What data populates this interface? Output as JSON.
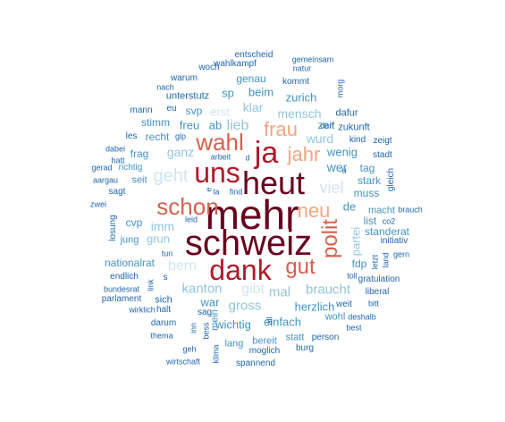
{
  "palette": {
    "darkest": "#67001f",
    "dark_red": "#b2182b",
    "salmon": "#d6604d",
    "light_salmon": "#f4a582",
    "pale_blue": "#d1e5f0",
    "light_blue": "#92c5de",
    "mid_blue": "#4393c3",
    "dark_blue": "#2166ac"
  },
  "words": [
    {
      "text": "mehr",
      "tier": "darkest"
    },
    {
      "text": "schweiz",
      "tier": "darkest"
    },
    {
      "text": "heut",
      "tier": "darkest"
    },
    {
      "text": "uns",
      "tier": "dark_red"
    },
    {
      "text": "dank",
      "tier": "dark_red"
    },
    {
      "text": "ja",
      "tier": "dark_red"
    },
    {
      "text": "wahl",
      "tier": "salmon"
    },
    {
      "text": "schon",
      "tier": "salmon"
    },
    {
      "text": "gut",
      "tier": "salmon"
    },
    {
      "text": "polit",
      "tier": "salmon"
    },
    {
      "text": "jahr",
      "tier": "light_salmon"
    },
    {
      "text": "frau",
      "tier": "light_salmon"
    },
    {
      "text": "neu",
      "tier": "light_salmon"
    },
    {
      "text": "geht",
      "tier": "pale_blue"
    },
    {
      "text": "viel",
      "tier": "pale_blue"
    },
    {
      "text": "bern",
      "tier": "pale_blue"
    },
    {
      "text": "gibt",
      "tier": "pale_blue"
    },
    {
      "text": "erst",
      "tier": "pale_blue"
    },
    {
      "text": "kanton",
      "tier": "light_blue"
    },
    {
      "text": "gross",
      "tier": "light_blue"
    },
    {
      "text": "braucht",
      "tier": "light_blue"
    },
    {
      "text": "mal",
      "tier": "light_blue"
    },
    {
      "text": "ganz",
      "tier": "light_blue"
    },
    {
      "text": "lieb",
      "tier": "light_blue"
    },
    {
      "text": "klar",
      "tier": "light_blue"
    },
    {
      "text": "mensch",
      "tier": "light_blue"
    },
    {
      "text": "wurd",
      "tier": "light_blue"
    },
    {
      "text": "imm",
      "tier": "light_blue"
    },
    {
      "text": "grun",
      "tier": "light_blue"
    },
    {
      "text": "partei",
      "tier": "light_blue"
    },
    {
      "text": "herzlich",
      "tier": "mid_blue"
    },
    {
      "text": "wichtig",
      "tier": "mid_blue"
    },
    {
      "text": "einfach",
      "tier": "mid_blue"
    },
    {
      "text": "wer",
      "tier": "mid_blue"
    },
    {
      "text": "wenig",
      "tier": "mid_blue"
    },
    {
      "text": "nationalrat",
      "tier": "mid_blue"
    },
    {
      "text": "beim",
      "tier": "mid_blue"
    },
    {
      "text": "zurich",
      "tier": "mid_blue"
    },
    {
      "text": "stark",
      "tier": "mid_blue"
    },
    {
      "text": "muss",
      "tier": "mid_blue"
    },
    {
      "text": "tag",
      "tier": "mid_blue"
    },
    {
      "text": "fdp",
      "tier": "mid_blue"
    },
    {
      "text": "standerat",
      "tier": "mid_blue"
    },
    {
      "text": "war",
      "tier": "mid_blue"
    },
    {
      "text": "sp",
      "tier": "mid_blue"
    },
    {
      "text": "ab",
      "tier": "mid_blue"
    },
    {
      "text": "svp",
      "tier": "mid_blue"
    },
    {
      "text": "frag",
      "tier": "mid_blue"
    },
    {
      "text": "recht",
      "tier": "mid_blue"
    },
    {
      "text": "stimm",
      "tier": "mid_blue"
    },
    {
      "text": "freu",
      "tier": "mid_blue"
    },
    {
      "text": "seit",
      "tier": "mid_blue"
    },
    {
      "text": "cvp",
      "tier": "mid_blue"
    },
    {
      "text": "jung",
      "tier": "mid_blue"
    },
    {
      "text": "genau",
      "tier": "mid_blue"
    },
    {
      "text": "list",
      "tier": "mid_blue"
    },
    {
      "text": "zeit",
      "tier": "mid_blue"
    },
    {
      "text": "lang",
      "tier": "mid_blue"
    },
    {
      "text": "bereit",
      "tier": "mid_blue"
    },
    {
      "text": "statt",
      "tier": "mid_blue"
    },
    {
      "text": "wohl",
      "tier": "mid_blue"
    },
    {
      "text": "macht",
      "tier": "mid_blue"
    },
    {
      "text": "de",
      "tier": "mid_blue"
    },
    {
      "text": "mein",
      "tier": "mid_blue"
    },
    {
      "text": "richtig",
      "tier": "mid_blue"
    },
    {
      "text": "unterstutz",
      "tier": "dark_blue"
    },
    {
      "text": "kommt",
      "tier": "dark_blue"
    },
    {
      "text": "wahlkampf",
      "tier": "dark_blue"
    },
    {
      "text": "entscheid",
      "tier": "dark_blue"
    },
    {
      "text": "gemeinsam",
      "tier": "dark_blue"
    },
    {
      "text": "natur",
      "tier": "dark_blue"
    },
    {
      "text": "woch",
      "tier": "dark_blue"
    },
    {
      "text": "warum",
      "tier": "dark_blue"
    },
    {
      "text": "nach",
      "tier": "dark_blue"
    },
    {
      "text": "morg",
      "tier": "dark_blue"
    },
    {
      "text": "mann",
      "tier": "dark_blue"
    },
    {
      "text": "eu",
      "tier": "dark_blue"
    },
    {
      "text": "glp",
      "tier": "dark_blue"
    },
    {
      "text": "les",
      "tier": "dark_blue"
    },
    {
      "text": "dabei",
      "tier": "dark_blue"
    },
    {
      "text": "hatt",
      "tier": "dark_blue"
    },
    {
      "text": "gerad",
      "tier": "dark_blue"
    },
    {
      "text": "aargau",
      "tier": "dark_blue"
    },
    {
      "text": "sagt",
      "tier": "dark_blue"
    },
    {
      "text": "zwei",
      "tier": "dark_blue"
    },
    {
      "text": "losung",
      "tier": "dark_blue"
    },
    {
      "text": "dafur",
      "tier": "dark_blue"
    },
    {
      "text": "zukunft",
      "tier": "dark_blue"
    },
    {
      "text": "kind",
      "tier": "dark_blue"
    },
    {
      "text": "zeigt",
      "tier": "dark_blue"
    },
    {
      "text": "stadt",
      "tier": "dark_blue"
    },
    {
      "text": "gleich",
      "tier": "dark_blue"
    },
    {
      "text": "brauch",
      "tier": "dark_blue"
    },
    {
      "text": "co2",
      "tier": "dark_blue"
    },
    {
      "text": "initiativ",
      "tier": "dark_blue"
    },
    {
      "text": "letzt",
      "tier": "dark_blue"
    },
    {
      "text": "land",
      "tier": "dark_blue"
    },
    {
      "text": "gern",
      "tier": "dark_blue"
    },
    {
      "text": "toll",
      "tier": "dark_blue"
    },
    {
      "text": "gratulation",
      "tier": "dark_blue"
    },
    {
      "text": "liberal",
      "tier": "dark_blue"
    },
    {
      "text": "deshalb",
      "tier": "dark_blue"
    },
    {
      "text": "best",
      "tier": "dark_blue"
    },
    {
      "text": "bitt",
      "tier": "dark_blue"
    },
    {
      "text": "person",
      "tier": "dark_blue"
    },
    {
      "text": "burg",
      "tier": "dark_blue"
    },
    {
      "text": "moglich",
      "tier": "dark_blue"
    },
    {
      "text": "spannend",
      "tier": "dark_blue"
    },
    {
      "text": "klima",
      "tier": "dark_blue"
    },
    {
      "text": "wirtschaft",
      "tier": "dark_blue"
    },
    {
      "text": "geh",
      "tier": "dark_blue"
    },
    {
      "text": "thema",
      "tier": "dark_blue"
    },
    {
      "text": "darum",
      "tier": "dark_blue"
    },
    {
      "text": "wirklich",
      "tier": "dark_blue"
    },
    {
      "text": "parlament",
      "tier": "dark_blue"
    },
    {
      "text": "bundesrat",
      "tier": "dark_blue"
    },
    {
      "text": "endlich",
      "tier": "dark_blue"
    },
    {
      "text": "halt",
      "tier": "dark_blue"
    },
    {
      "text": "sich",
      "tier": "dark_blue"
    },
    {
      "text": "sag",
      "tier": "dark_blue"
    },
    {
      "text": "link",
      "tier": "dark_blue"
    },
    {
      "text": "tun",
      "tier": "dark_blue"
    },
    {
      "text": "leid",
      "tier": "dark_blue"
    },
    {
      "text": "find",
      "tier": "dark_blue"
    },
    {
      "text": "arbeit",
      "tier": "dark_blue"
    },
    {
      "text": "weit",
      "tier": "dark_blue"
    },
    {
      "text": "darf",
      "tier": "dark_blue"
    },
    {
      "text": "bess",
      "tier": "dark_blue"
    },
    {
      "text": "inn",
      "tier": "dark_blue"
    },
    {
      "text": "s",
      "tier": "dark_blue"
    },
    {
      "text": "la",
      "tier": "dark_blue"
    },
    {
      "text": "e",
      "tier": "dark_blue"
    },
    {
      "text": "d",
      "tier": "dark_blue"
    },
    {
      "text": "u",
      "tier": "dark_blue"
    },
    {
      "text": "all",
      "tier": "dark_blue"
    }
  ]
}
